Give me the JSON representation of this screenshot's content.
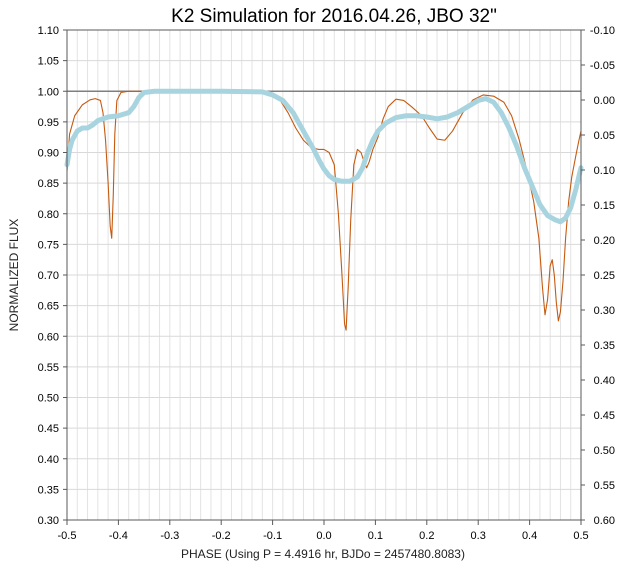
{
  "chart_data": {
    "type": "line",
    "title": "K2 Simulation for 2016.04.26,  JBO 32\"",
    "xlabel": "PHASE (Using P = 4.4916 hr, BJDo = 2457480.8083)",
    "ylabel": "NORMALIZED FLUX",
    "xlim": [
      -0.5,
      0.5
    ],
    "ylim": [
      0.3,
      1.1
    ],
    "y2lim": [
      -0.1,
      0.6
    ],
    "y2_inverted": true,
    "grid": true,
    "legend": "none",
    "x_ticks": [
      "-0.5",
      "-0.4",
      "-0.3",
      "-0.2",
      "-0.1",
      "0.0",
      "0.1",
      "0.2",
      "0.3",
      "0.4",
      "0.5"
    ],
    "y_ticks": [
      "0.30",
      "0.35",
      "0.40",
      "0.45",
      "0.50",
      "0.55",
      "0.60",
      "0.65",
      "0.70",
      "0.75",
      "0.80",
      "0.85",
      "0.90",
      "0.95",
      "1.00",
      "1.05",
      "1.10"
    ],
    "y2_ticks": [
      "-0.10",
      "-0.05",
      "0.00",
      "0.05",
      "0.10",
      "0.15",
      "0.20",
      "0.25",
      "0.30",
      "0.35",
      "0.40",
      "0.45",
      "0.50",
      "0.55",
      "0.60"
    ],
    "reference_line": {
      "y": 1.0,
      "color": "#7f7f7f"
    },
    "series": [
      {
        "color": "#c55a11",
        "points": [
          [
            -0.5,
            0.87
          ],
          [
            -0.495,
            0.93
          ],
          [
            -0.485,
            0.96
          ],
          [
            -0.47,
            0.978
          ],
          [
            -0.455,
            0.986
          ],
          [
            -0.445,
            0.988
          ],
          [
            -0.435,
            0.985
          ],
          [
            -0.43,
            0.965
          ],
          [
            -0.425,
            0.92
          ],
          [
            -0.42,
            0.85
          ],
          [
            -0.416,
            0.78
          ],
          [
            -0.413,
            0.76
          ],
          [
            -0.41,
            0.83
          ],
          [
            -0.407,
            0.93
          ],
          [
            -0.403,
            0.985
          ],
          [
            -0.395,
            0.998
          ],
          [
            -0.38,
            1.0
          ],
          [
            -0.3,
            1.0
          ],
          [
            -0.2,
            1.0
          ],
          [
            -0.15,
            1.0
          ],
          [
            -0.12,
            0.998
          ],
          [
            -0.1,
            0.993
          ],
          [
            -0.085,
            0.985
          ],
          [
            -0.07,
            0.965
          ],
          [
            -0.055,
            0.94
          ],
          [
            -0.04,
            0.92
          ],
          [
            -0.025,
            0.908
          ],
          [
            -0.01,
            0.905
          ],
          [
            0.0,
            0.905
          ],
          [
            0.01,
            0.9
          ],
          [
            0.02,
            0.88
          ],
          [
            0.028,
            0.8
          ],
          [
            0.035,
            0.7
          ],
          [
            0.04,
            0.62
          ],
          [
            0.043,
            0.61
          ],
          [
            0.047,
            0.68
          ],
          [
            0.052,
            0.79
          ],
          [
            0.058,
            0.88
          ],
          [
            0.065,
            0.905
          ],
          [
            0.072,
            0.9
          ],
          [
            0.078,
            0.885
          ],
          [
            0.083,
            0.875
          ],
          [
            0.088,
            0.885
          ],
          [
            0.095,
            0.905
          ],
          [
            0.105,
            0.925
          ],
          [
            0.115,
            0.955
          ],
          [
            0.125,
            0.975
          ],
          [
            0.14,
            0.987
          ],
          [
            0.155,
            0.985
          ],
          [
            0.17,
            0.975
          ],
          [
            0.19,
            0.96
          ],
          [
            0.205,
            0.94
          ],
          [
            0.22,
            0.922
          ],
          [
            0.235,
            0.92
          ],
          [
            0.25,
            0.935
          ],
          [
            0.27,
            0.965
          ],
          [
            0.29,
            0.986
          ],
          [
            0.31,
            0.994
          ],
          [
            0.33,
            0.992
          ],
          [
            0.35,
            0.982
          ],
          [
            0.365,
            0.96
          ],
          [
            0.38,
            0.92
          ],
          [
            0.395,
            0.87
          ],
          [
            0.408,
            0.82
          ],
          [
            0.418,
            0.76
          ],
          [
            0.425,
            0.68
          ],
          [
            0.43,
            0.635
          ],
          [
            0.435,
            0.66
          ],
          [
            0.44,
            0.715
          ],
          [
            0.444,
            0.725
          ],
          [
            0.448,
            0.7
          ],
          [
            0.452,
            0.655
          ],
          [
            0.456,
            0.625
          ],
          [
            0.46,
            0.64
          ],
          [
            0.465,
            0.69
          ],
          [
            0.47,
            0.76
          ],
          [
            0.476,
            0.82
          ],
          [
            0.482,
            0.86
          ],
          [
            0.49,
            0.895
          ],
          [
            0.496,
            0.92
          ],
          [
            0.5,
            0.935
          ]
        ]
      },
      {
        "color": "#a8d4df",
        "points": [
          [
            -0.5,
            0.88
          ],
          [
            -0.495,
            0.905
          ],
          [
            -0.49,
            0.92
          ],
          [
            -0.48,
            0.935
          ],
          [
            -0.47,
            0.94
          ],
          [
            -0.46,
            0.94
          ],
          [
            -0.45,
            0.945
          ],
          [
            -0.44,
            0.952
          ],
          [
            -0.42,
            0.958
          ],
          [
            -0.4,
            0.96
          ],
          [
            -0.38,
            0.965
          ],
          [
            -0.37,
            0.975
          ],
          [
            -0.36,
            0.99
          ],
          [
            -0.35,
            0.998
          ],
          [
            -0.33,
            1.0
          ],
          [
            -0.2,
            1.0
          ],
          [
            -0.12,
            0.999
          ],
          [
            -0.1,
            0.994
          ],
          [
            -0.08,
            0.985
          ],
          [
            -0.06,
            0.965
          ],
          [
            -0.04,
            0.935
          ],
          [
            -0.02,
            0.905
          ],
          [
            -0.01,
            0.888
          ],
          [
            0.0,
            0.873
          ],
          [
            0.01,
            0.862
          ],
          [
            0.02,
            0.856
          ],
          [
            0.035,
            0.853
          ],
          [
            0.05,
            0.853
          ],
          [
            0.065,
            0.86
          ],
          [
            0.075,
            0.875
          ],
          [
            0.085,
            0.9
          ],
          [
            0.095,
            0.92
          ],
          [
            0.105,
            0.935
          ],
          [
            0.12,
            0.948
          ],
          [
            0.14,
            0.957
          ],
          [
            0.16,
            0.96
          ],
          [
            0.18,
            0.96
          ],
          [
            0.2,
            0.958
          ],
          [
            0.22,
            0.955
          ],
          [
            0.24,
            0.958
          ],
          [
            0.26,
            0.965
          ],
          [
            0.28,
            0.975
          ],
          [
            0.3,
            0.985
          ],
          [
            0.315,
            0.988
          ],
          [
            0.33,
            0.982
          ],
          [
            0.345,
            0.965
          ],
          [
            0.36,
            0.94
          ],
          [
            0.375,
            0.91
          ],
          [
            0.39,
            0.875
          ],
          [
            0.405,
            0.845
          ],
          [
            0.42,
            0.815
          ],
          [
            0.435,
            0.797
          ],
          [
            0.45,
            0.79
          ],
          [
            0.46,
            0.787
          ],
          [
            0.47,
            0.793
          ],
          [
            0.48,
            0.81
          ],
          [
            0.49,
            0.84
          ],
          [
            0.497,
            0.865
          ],
          [
            0.5,
            0.875
          ]
        ]
      }
    ]
  }
}
